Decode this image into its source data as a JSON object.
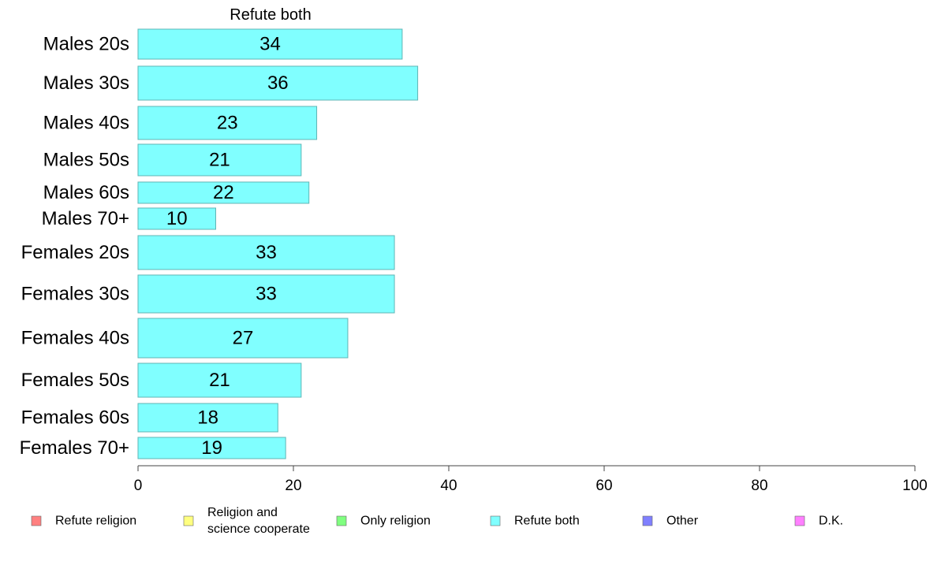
{
  "chart_data": {
    "type": "bar",
    "orientation": "horizontal",
    "title": "Refute both",
    "categories": [
      "Males 20s",
      "Males 30s",
      "Males 40s",
      "Males 50s",
      "Males 60s",
      "Males 70+",
      "Females 20s",
      "Females 30s",
      "Females 40s",
      "Females 50s",
      "Females 60s",
      "Females 70+"
    ],
    "values": [
      34,
      36,
      23,
      21,
      22,
      10,
      33,
      33,
      27,
      21,
      18,
      19
    ],
    "value_labels": [
      "34",
      "36",
      "23",
      "21",
      "22",
      "10",
      "33",
      "33",
      "27",
      "21",
      "18",
      "19"
    ],
    "xlim": [
      0,
      100
    ],
    "xticks": [
      0,
      20,
      40,
      60,
      80,
      100
    ],
    "xtick_labels": [
      "0",
      "20",
      "40",
      "60",
      "80",
      "100"
    ],
    "xlabel": "",
    "ylabel": "",
    "grid": false,
    "bar_color": "#80ffff",
    "bar_edge_color": "#5fb5b5",
    "legend_position": "bottom",
    "legend": [
      {
        "label_lines": [
          "Refute religion"
        ],
        "color": "#ff8080"
      },
      {
        "label_lines": [
          "Religion and",
          "science cooperate"
        ],
        "color": "#ffff80"
      },
      {
        "label_lines": [
          "Only religion"
        ],
        "color": "#80ff80"
      },
      {
        "label_lines": [
          "Refute both"
        ],
        "color": "#80ffff"
      },
      {
        "label_lines": [
          "Other"
        ],
        "color": "#8080ff"
      },
      {
        "label_lines": [
          "D.K."
        ],
        "color": "#ff80ff"
      }
    ]
  }
}
